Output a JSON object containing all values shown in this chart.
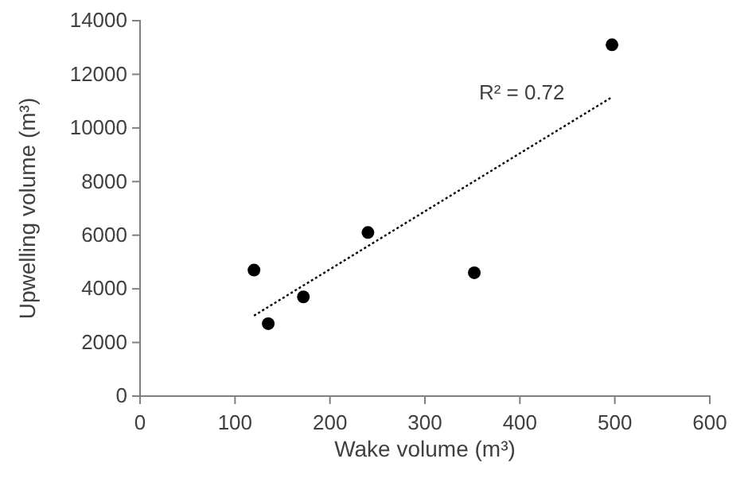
{
  "chart_data": {
    "type": "scatter",
    "xlabel": "Wake volume (m³)",
    "ylabel": "Upwelling volume (m³)",
    "xlim": [
      0,
      600
    ],
    "xticks": [
      0,
      100,
      200,
      300,
      400,
      500,
      600
    ],
    "ylim": [
      0,
      14000
    ],
    "yticks": [
      0,
      2000,
      4000,
      6000,
      8000,
      10000,
      12000,
      14000
    ],
    "grid": false,
    "marker": "circle",
    "annotations": [
      "R² = 0.72"
    ],
    "series": [
      {
        "color": "#000000",
        "x": [
          120,
          135,
          172,
          240,
          352,
          497
        ],
        "values": [
          4700,
          2700,
          3700,
          6100,
          4600,
          13100
        ]
      },
      {
        "type": "line",
        "color": "#000000",
        "line_style": "dotted",
        "marker": "none",
        "x": [
          120,
          497
        ],
        "values": [
          3000,
          11150
        ]
      }
    ]
  }
}
